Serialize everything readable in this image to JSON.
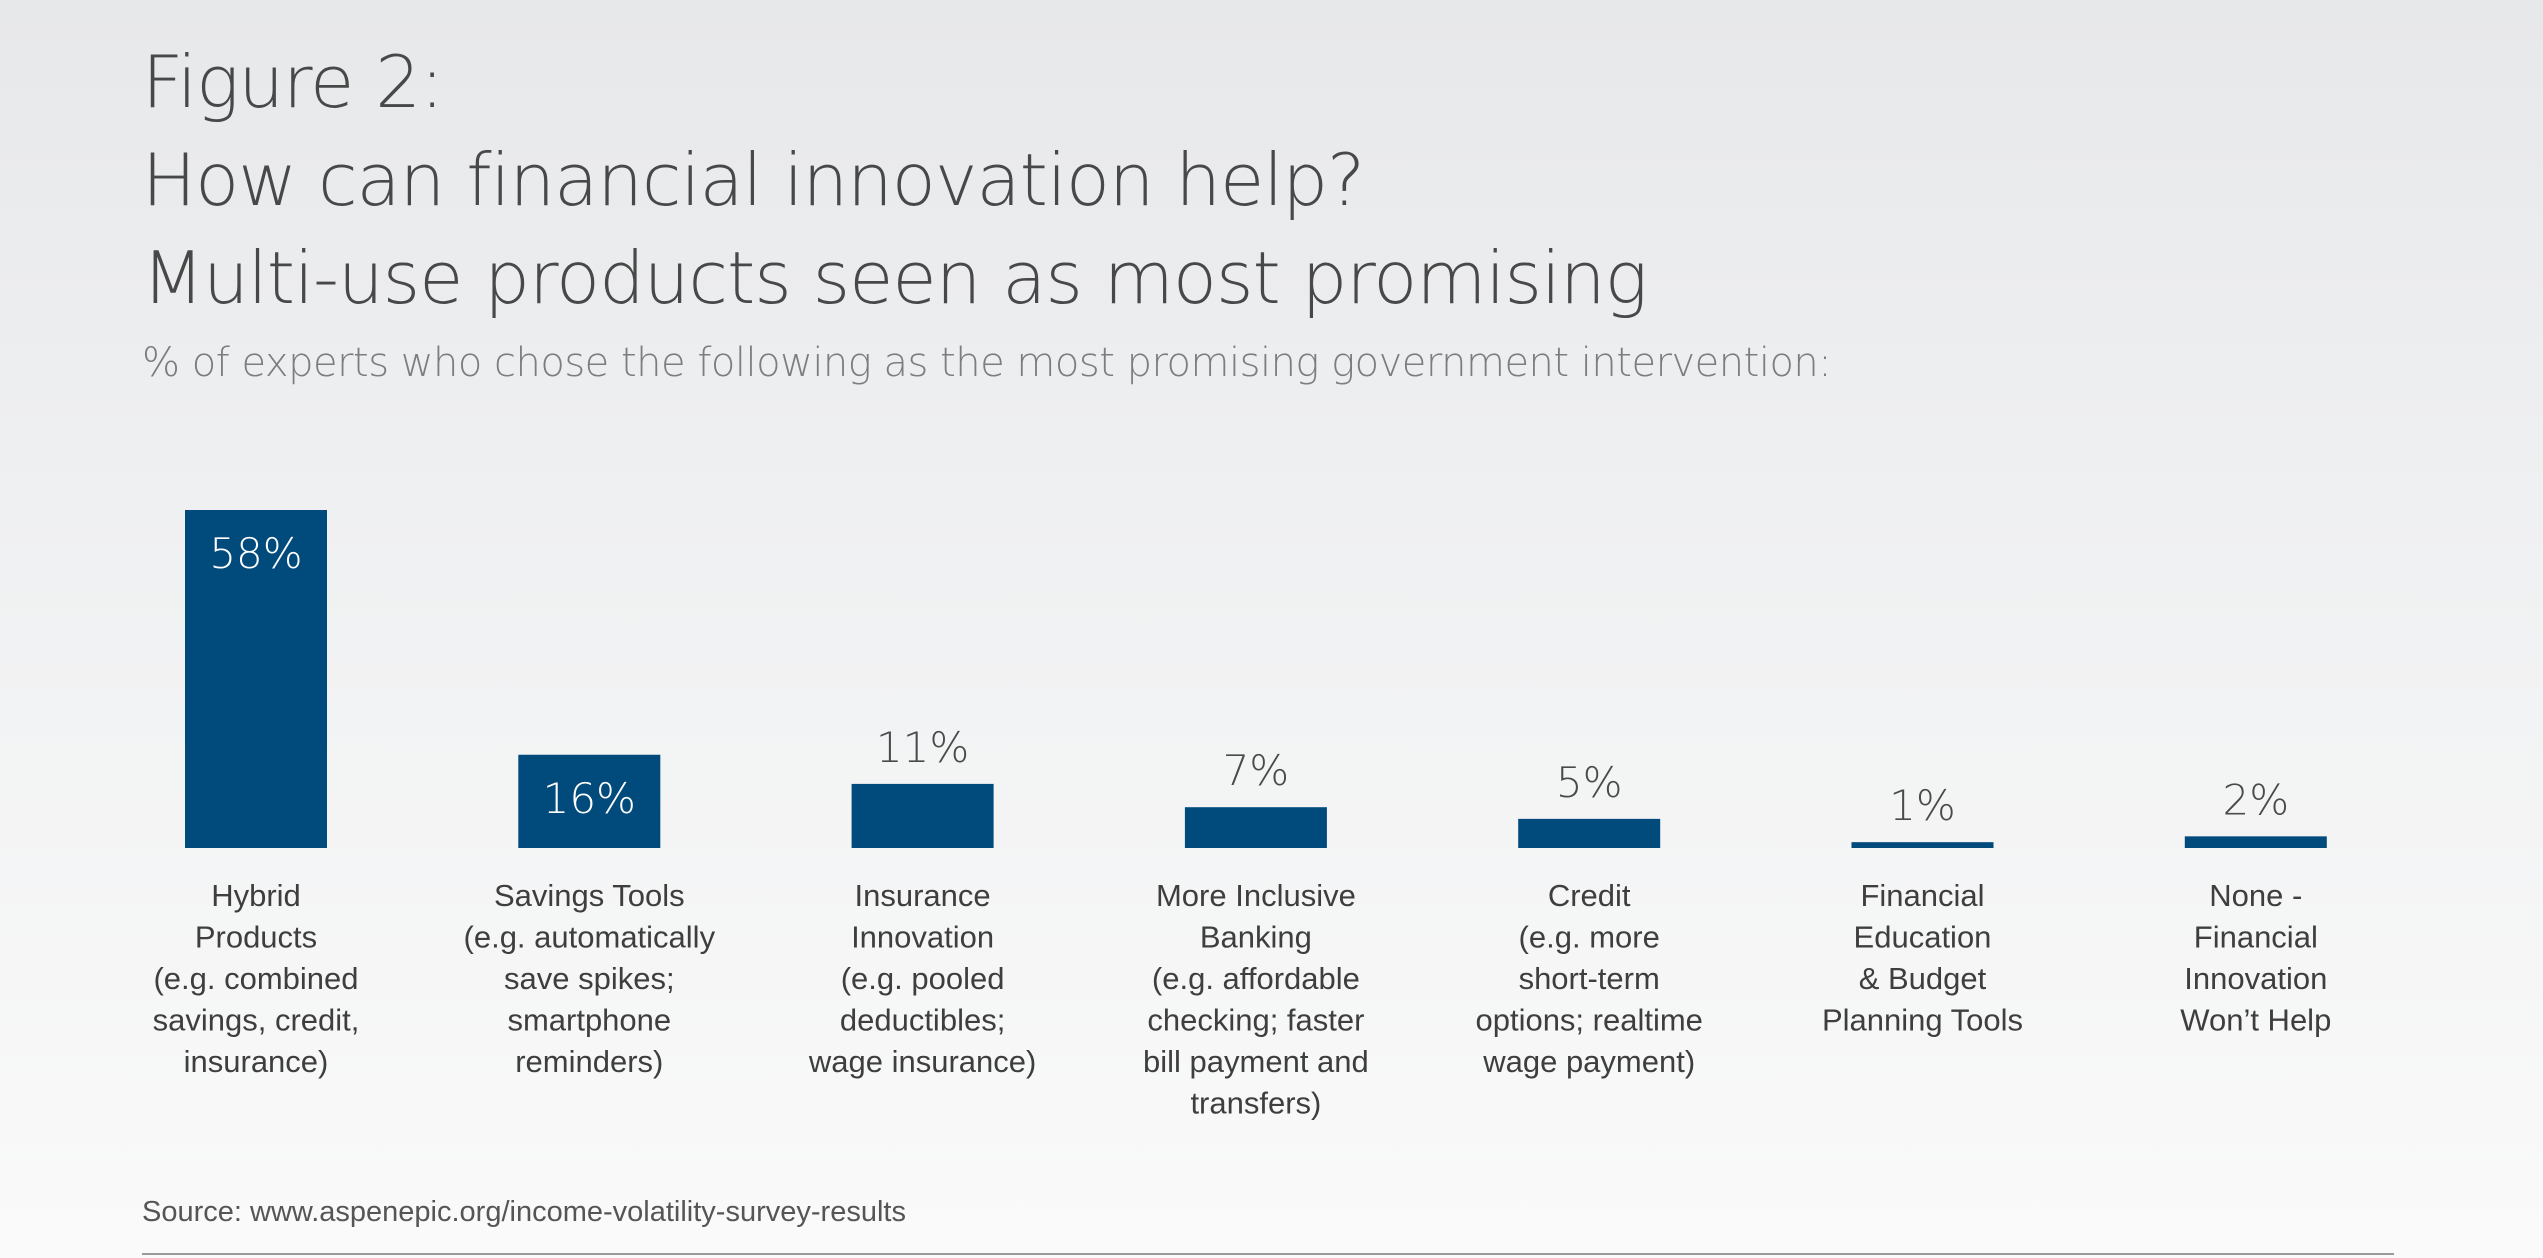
{
  "figure_label": "Figure 2:",
  "source": "Source: www.aspenepic.org/income-volatility-survey-results",
  "colors": {
    "bar": "#004a7c",
    "label_inside": "#ffffff",
    "label_outside": "#4a4a4a"
  },
  "chart_data": {
    "type": "bar",
    "title": "How can financial innovation help?",
    "subtitle_main": "Multi-use products seen as most promising",
    "subtitle": "% of experts who chose the following as the most promising government intervention:",
    "xlabel": "",
    "ylabel": "",
    "ylim": [
      0,
      58
    ],
    "grid": false,
    "legend": "none",
    "unit": "%",
    "categories": [
      [
        "Hybrid",
        "Products",
        "(e.g. combined",
        "savings, credit,",
        "insurance)"
      ],
      [
        "Savings Tools",
        "(e.g. automatically",
        "save spikes;",
        "smartphone",
        "reminders)"
      ],
      [
        "Insurance",
        "Innovation",
        "(e.g. pooled",
        "deductibles;",
        "wage insurance)"
      ],
      [
        "More Inclusive",
        "Banking",
        "(e.g. affordable",
        "checking; faster",
        "bill payment and",
        "transfers)"
      ],
      [
        "Credit",
        "(e.g. more",
        "short-term",
        "options; realtime",
        "wage payment)"
      ],
      [
        "Financial",
        "Education",
        "& Budget",
        "Planning Tools"
      ],
      [
        "None -",
        "Financial",
        "Innovation",
        "Won’t Help"
      ]
    ],
    "values": [
      58,
      16,
      11,
      7,
      5,
      1,
      2
    ],
    "value_labels": [
      "58%",
      "16%",
      "11%",
      "7%",
      "5%",
      "1%",
      "2%"
    ],
    "label_inside": [
      true,
      true,
      false,
      false,
      false,
      false,
      false
    ]
  }
}
